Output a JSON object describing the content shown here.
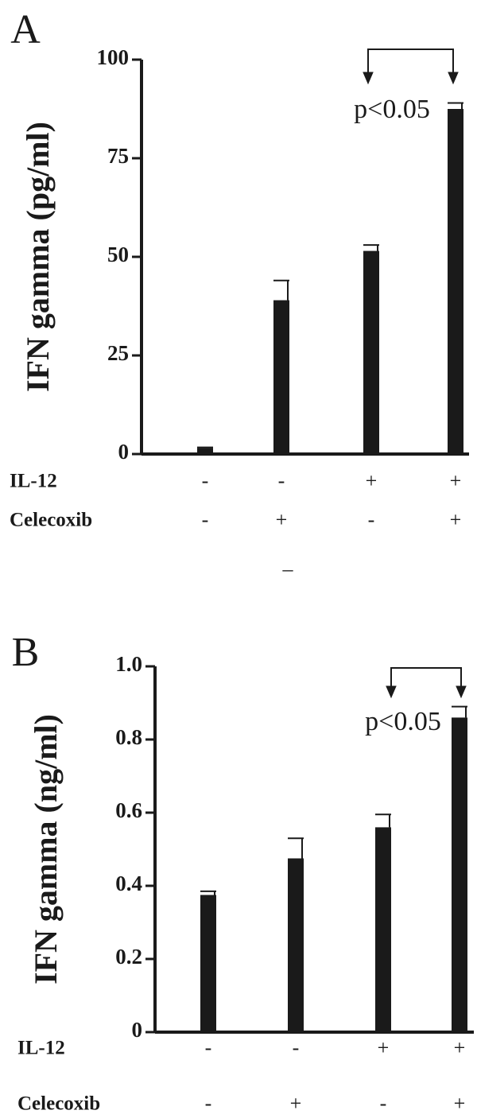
{
  "chart_data": [
    {
      "type": "bar",
      "panel": "A",
      "y_label": "IFN gamma (pg/ml)",
      "values": [
        1.5,
        39,
        51.5,
        87.5
      ],
      "errors": [
        0.2,
        5,
        1.5,
        1.5
      ],
      "color": "#1a1a1a",
      "ylim": [
        0,
        100
      ],
      "yticks": [
        0,
        25,
        50,
        75,
        100
      ],
      "annotation": "p<0.05",
      "conditions": [
        {
          "label": "IL-12",
          "values": [
            "-",
            "-",
            "+",
            "+"
          ]
        },
        {
          "label": "Celecoxib",
          "values": [
            "-",
            "+",
            "-",
            "+"
          ]
        }
      ],
      "note": "–"
    },
    {
      "type": "bar",
      "panel": "B",
      "y_label": "IFN gamma (ng/ml)",
      "values": [
        0.375,
        0.475,
        0.56,
        0.86
      ],
      "errors": [
        0.01,
        0.055,
        0.035,
        0.03
      ],
      "color": "#1a1a1a",
      "ylim": [
        0,
        1
      ],
      "yticks": [
        0,
        0.2,
        0.4,
        0.6,
        0.8,
        {
          "value": 1,
          "label": "1.0"
        }
      ],
      "annotation": "p<0.05",
      "conditions": [
        {
          "label": "IL-12",
          "values": [
            "-",
            "-",
            "+",
            "+"
          ]
        },
        {
          "label": "Celecoxib",
          "values": [
            "-",
            "+",
            "-",
            "+"
          ]
        }
      ]
    }
  ]
}
